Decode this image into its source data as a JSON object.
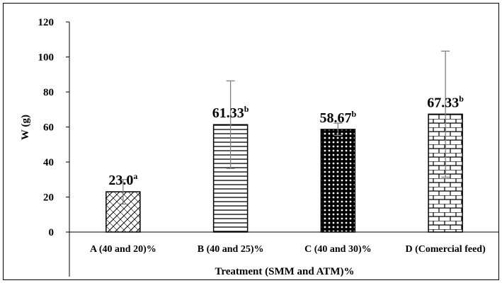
{
  "chart_data": {
    "type": "bar",
    "categories": [
      "A (40 and 20)%",
      "B (40 and 25)%",
      "C (40 and 30)%",
      "D (Comercial feed)"
    ],
    "values": [
      23.0,
      61.33,
      58.67,
      67.33
    ],
    "errors": [
      7,
      25,
      3.5,
      36
    ],
    "data_labels": [
      "23.0",
      "61.33",
      "58.67",
      "67.33"
    ],
    "significance": [
      "a",
      "b",
      "b",
      "b"
    ],
    "patterns": [
      "diagonal-crosshatch",
      "horizontal-lines",
      "dots",
      "bricks"
    ],
    "xlabel": "Treatment (SMM and ATM)%",
    "ylabel": "W (g)",
    "ylim": [
      0,
      120
    ],
    "yticks": [
      0,
      20,
      40,
      60,
      80,
      100,
      120
    ],
    "grid": false,
    "colors": {
      "bar_fill": "#ffffff",
      "bar_stroke": "#000000",
      "error_bar": "#7f7f7f"
    }
  }
}
